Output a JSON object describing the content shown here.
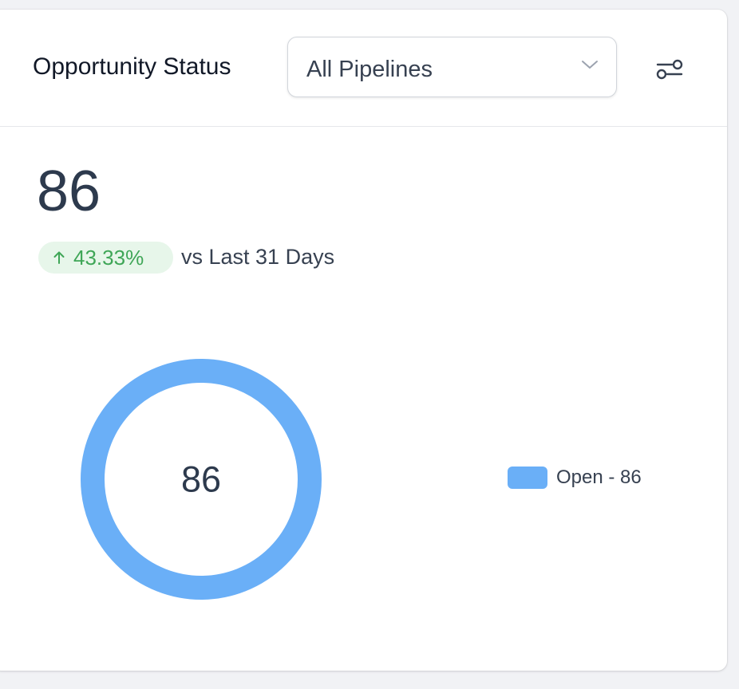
{
  "widget": {
    "title": "Opportunity Status",
    "pipeline_select": {
      "value": "All Pipelines"
    },
    "total": "86",
    "change": {
      "percent": "43.33%",
      "direction": "up",
      "comparison": "vs Last 31 Days"
    }
  },
  "colors": {
    "accent": "#6aaff7",
    "positive_text": "#3fa657",
    "positive_bg": "#e7f6ea",
    "number": "#2d3a4d"
  },
  "icons": {
    "select": "chevron-down-icon",
    "filter": "filter-sliders-icon",
    "trend": "arrow-up-icon"
  },
  "chart_data": {
    "type": "pie",
    "center_label": "86",
    "series": [
      {
        "name": "Open",
        "value": 86
      }
    ],
    "legend": [
      "Open - 86"
    ],
    "legend_position": "right"
  }
}
